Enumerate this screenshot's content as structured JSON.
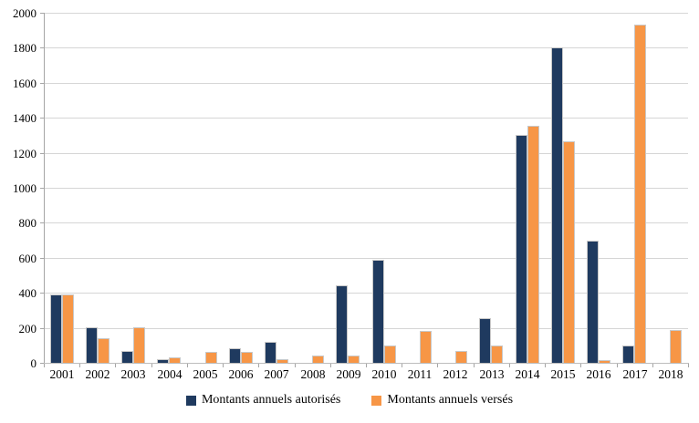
{
  "chart_data": {
    "type": "bar",
    "title": "",
    "xlabel": "",
    "ylabel": "",
    "categories": [
      "2001",
      "2002",
      "2003",
      "2004",
      "2005",
      "2006",
      "2007",
      "2008",
      "2009",
      "2010",
      "2011",
      "2012",
      "2013",
      "2014",
      "2015",
      "2016",
      "2017",
      "2018"
    ],
    "series": [
      {
        "key": "autorises",
        "name": "Montants annuels autorisés",
        "color": "#1f3a5f",
        "values": [
          390,
          205,
          70,
          20,
          0,
          85,
          120,
          0,
          445,
          590,
          0,
          0,
          255,
          1300,
          1800,
          700,
          100,
          0
        ]
      },
      {
        "key": "verses",
        "name": "Montants annuels versés",
        "color": "#f79646",
        "values": [
          390,
          140,
          205,
          30,
          65,
          60,
          20,
          40,
          40,
          100,
          180,
          70,
          100,
          1355,
          1265,
          15,
          1930,
          190
        ]
      }
    ],
    "ylim": [
      0,
      2000
    ],
    "yticks": [
      0,
      200,
      400,
      600,
      800,
      1000,
      1200,
      1400,
      1600,
      1800,
      2000
    ],
    "grid": true,
    "legend_position": "bottom"
  },
  "colors": {
    "background": "#ffffff",
    "gridline": "#d6d6d6",
    "axis": "#a6a6a6",
    "bar_border": "#c8c8c8",
    "text": "#000000"
  }
}
